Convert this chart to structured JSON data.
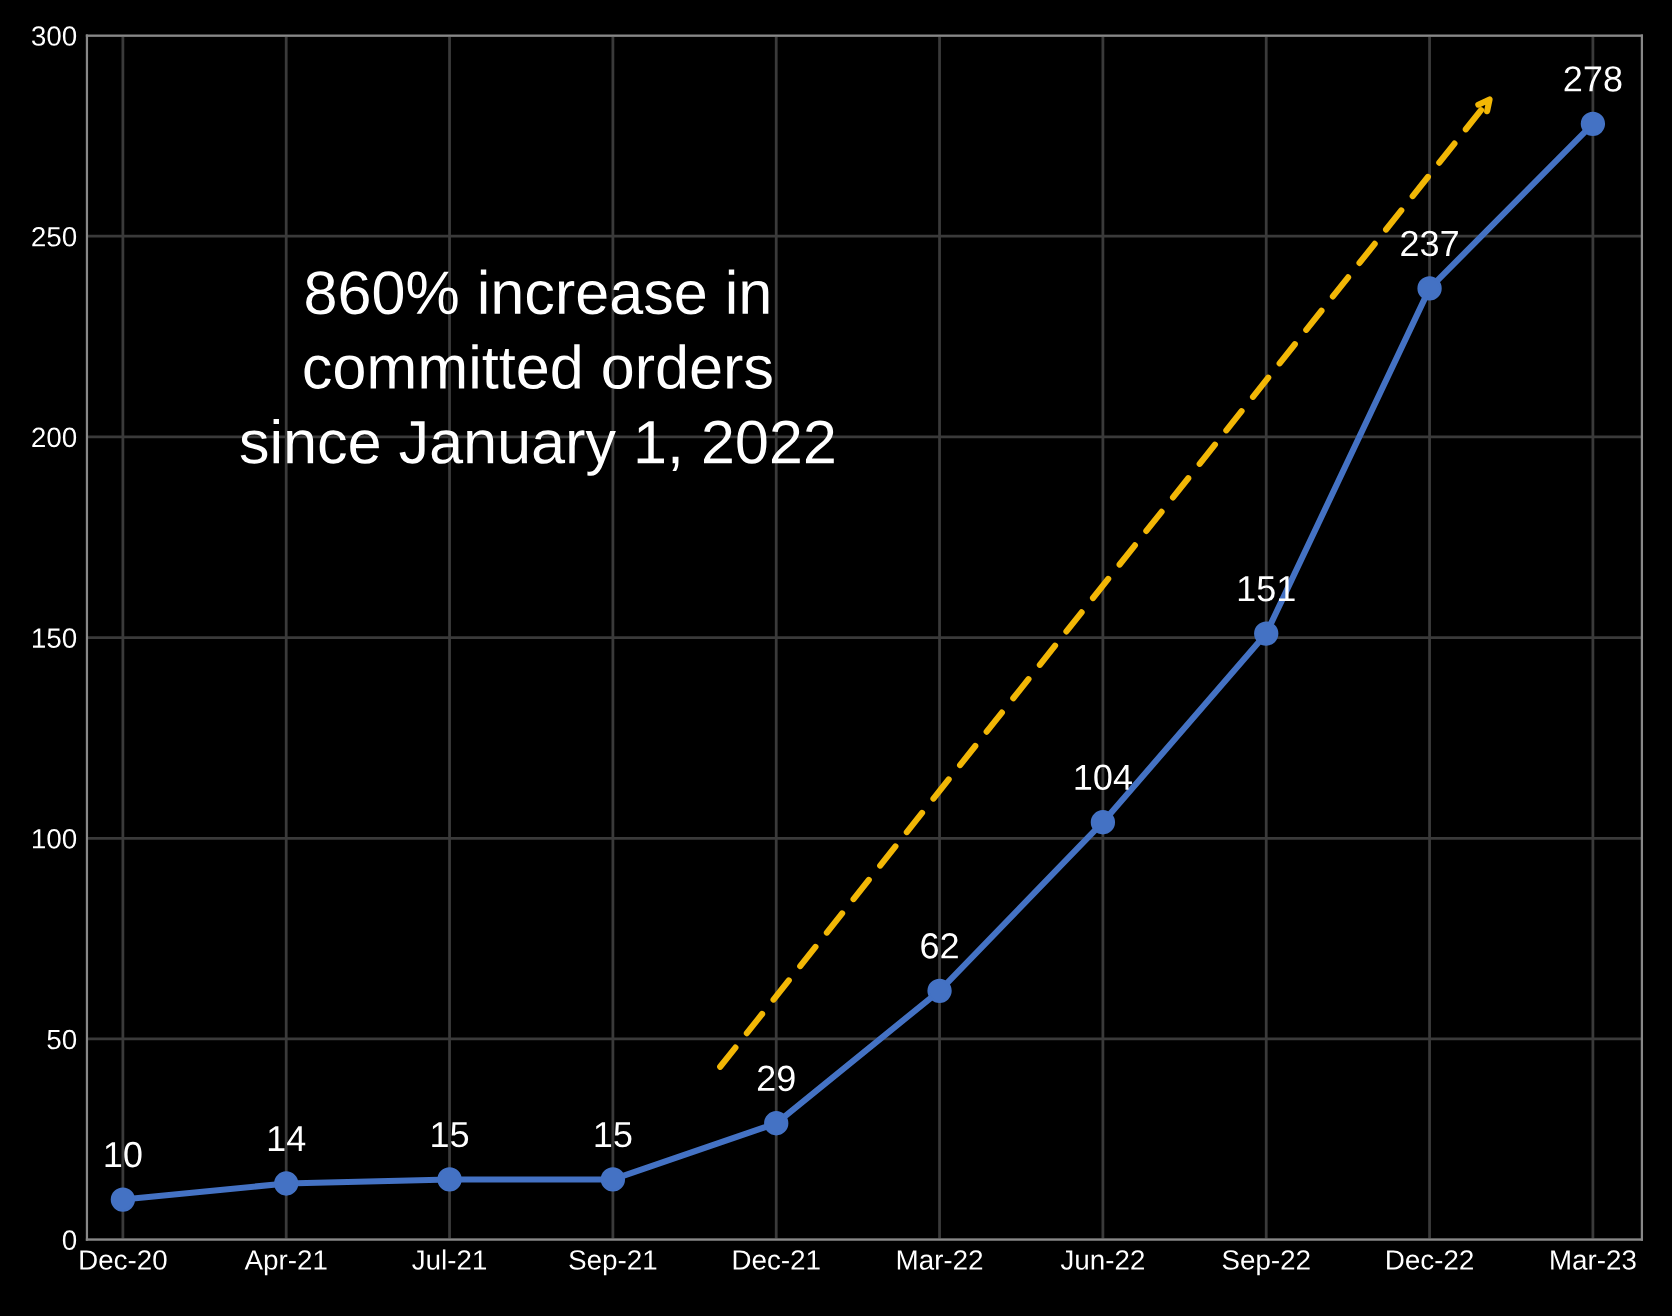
{
  "chart_data": {
    "type": "line",
    "categories": [
      "Dec-20",
      "Apr-21",
      "Jul-21",
      "Sep-21",
      "Dec-21",
      "Mar-22",
      "Jun-22",
      "Sep-22",
      "Dec-22",
      "Mar-23"
    ],
    "series": [
      {
        "color": "#4472c4",
        "values": [
          10,
          14,
          15,
          15,
          29,
          62,
          104,
          151,
          237,
          278
        ]
      }
    ],
    "ylim": [
      0,
      300
    ],
    "yticks": [
      0,
      50,
      100,
      150,
      200,
      250,
      300
    ],
    "grid": true,
    "marker": "circle",
    "line_style": "solid",
    "data_labels": true,
    "annotations": [
      "860% increase in\ncommitted orders\nsince January 1, 2022"
    ]
  }
}
